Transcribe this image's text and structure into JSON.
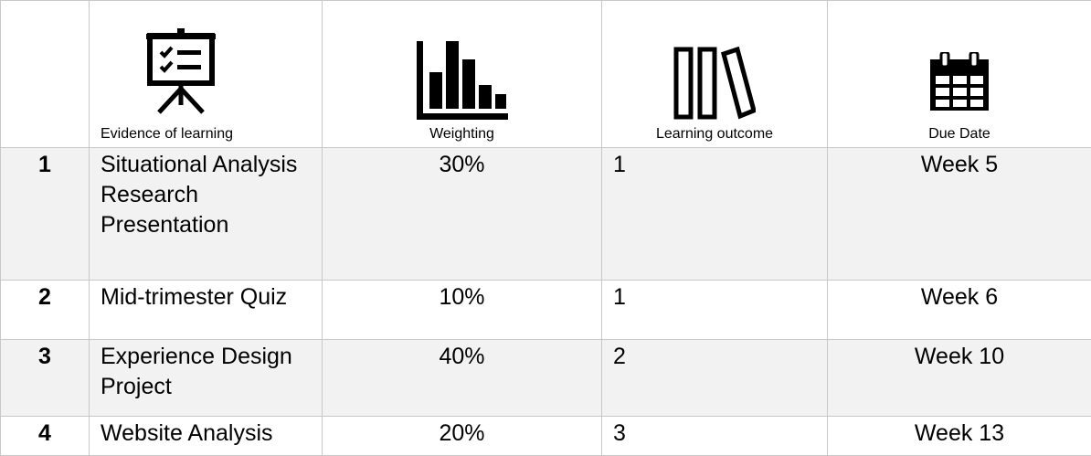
{
  "table": {
    "headers": [
      "",
      "Evidence of learning",
      "Weighting",
      "Learning outcome",
      "Due Date"
    ],
    "rows": [
      [
        "1",
        "Situational Analysis Research Presentation",
        "30%",
        "1",
        "Week 5"
      ],
      [
        "2",
        "Mid-trimester Quiz",
        "10%",
        "1",
        "Week 6"
      ],
      [
        "3",
        "Experience Design Project",
        "40%",
        "2",
        "Week 10"
      ],
      [
        "4",
        "Website Analysis",
        "20%",
        "3",
        "Week 13"
      ]
    ]
  }
}
